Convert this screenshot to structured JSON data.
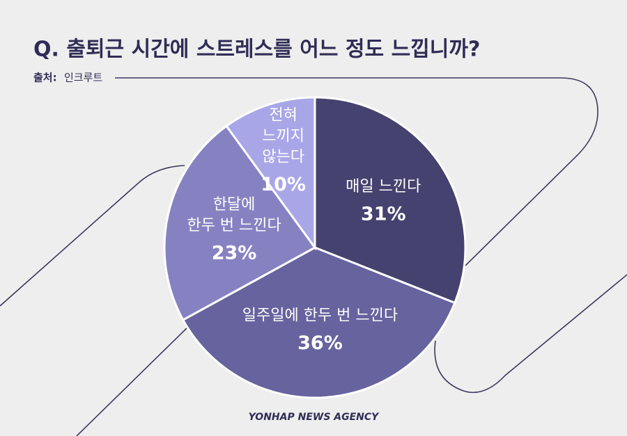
{
  "chart_data": {
    "type": "pie",
    "title": "Q. 출퇴근 시간에 스트레스를 어느 정도 느낍니까?",
    "source_label": "출처:",
    "source": "인크루트",
    "credit": "YONHAP NEWS AGENCY",
    "categories": [
      "매일 느낀다",
      "일주일에 한두 번 느낀다",
      "한달에\n한두 번 느낀다",
      "전혀\n느끼지\n않는다"
    ],
    "values": [
      31,
      36,
      23,
      10
    ],
    "value_labels": [
      "31%",
      "36%",
      "23%",
      "10%"
    ],
    "colors": [
      "#46426f",
      "#67639e",
      "#8682c2",
      "#a9a6e8"
    ]
  }
}
